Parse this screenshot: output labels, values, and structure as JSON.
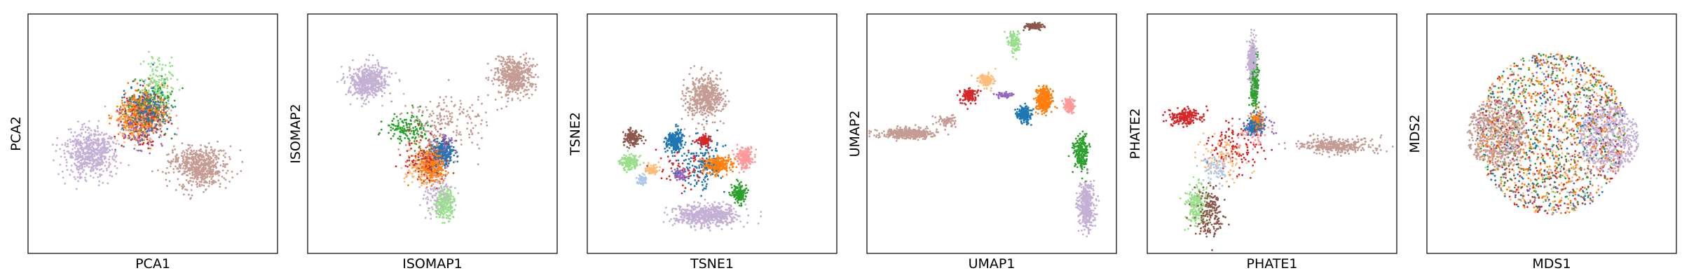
{
  "palette": {
    "tab_blue": "#1f77b4",
    "tab_orange": "#ff7f0e",
    "tab_green": "#2ca02c",
    "light_green": "#98df8a",
    "light_orange": "#ffbb78",
    "tab_red": "#d62728",
    "pink": "#ff9896",
    "tab_purple": "#9467bd",
    "lavender": "#c5b0d5",
    "brown": "#8c564b",
    "rosy_brown": "#c49c94"
  },
  "chart_data": [
    {
      "type": "scatter",
      "xlabel": "PCA1",
      "ylabel": "PCA2",
      "xlim": [
        0,
        100
      ],
      "ylim": [
        0,
        100
      ],
      "ticks": false,
      "grid": false,
      "legend": false,
      "clusters": [
        {
          "color": "lavender",
          "center": [
            25,
            42
          ],
          "spread": [
            9,
            9
          ],
          "count": 600
        },
        {
          "color": "rosy_brown",
          "center": [
            68,
            36
          ],
          "spread": [
            10,
            8
          ],
          "count": 600
        },
        {
          "color": "tab_orange",
          "center": [
            45,
            58
          ],
          "spread": [
            8,
            9
          ],
          "count": 400
        },
        {
          "color": "tab_blue",
          "center": [
            48,
            60
          ],
          "spread": [
            8,
            9
          ],
          "count": 250
        },
        {
          "color": "light_green",
          "center": [
            52,
            70
          ],
          "spread": [
            6,
            9
          ],
          "count": 150
        },
        {
          "color": "tab_green",
          "center": [
            50,
            62
          ],
          "spread": [
            7,
            9
          ],
          "count": 120
        },
        {
          "color": "tab_red",
          "center": [
            46,
            55
          ],
          "spread": [
            8,
            10
          ],
          "count": 120
        },
        {
          "color": "light_orange",
          "center": [
            43,
            56
          ],
          "spread": [
            8,
            9
          ],
          "count": 100
        },
        {
          "color": "tab_purple",
          "center": [
            44,
            52
          ],
          "spread": [
            8,
            9
          ],
          "count": 80
        },
        {
          "color": "brown",
          "center": [
            48,
            58
          ],
          "spread": [
            8,
            9
          ],
          "count": 80
        },
        {
          "color": "pink",
          "center": [
            50,
            57
          ],
          "spread": [
            8,
            9
          ],
          "count": 80
        }
      ]
    },
    {
      "type": "scatter",
      "xlabel": "ISOMAP1",
      "ylabel": "ISOMAP2",
      "xlim": [
        0,
        100
      ],
      "ylim": [
        0,
        100
      ],
      "ticks": false,
      "grid": false,
      "legend": false,
      "clusters": [
        {
          "color": "lavender",
          "center": [
            24,
            72
          ],
          "spread": [
            7,
            6
          ],
          "count": 500
        },
        {
          "color": "rosy_brown",
          "center": [
            83,
            74
          ],
          "spread": [
            7,
            7
          ],
          "count": 500
        },
        {
          "color": "rosy_brown",
          "center": [
            55,
            55
          ],
          "spread": [
            16,
            10
          ],
          "count": 200
        },
        {
          "color": "tab_orange",
          "center": [
            50,
            37
          ],
          "spread": [
            5,
            7
          ],
          "count": 300
        },
        {
          "color": "tab_blue",
          "center": [
            54,
            42
          ],
          "spread": [
            4,
            5
          ],
          "count": 250
        },
        {
          "color": "light_green",
          "center": [
            55,
            20
          ],
          "spread": [
            4,
            6
          ],
          "count": 200
        },
        {
          "color": "lavender",
          "center": [
            52,
            25
          ],
          "spread": [
            5,
            8
          ],
          "count": 120
        },
        {
          "color": "tab_green",
          "center": [
            40,
            52
          ],
          "spread": [
            9,
            6
          ],
          "count": 150
        },
        {
          "color": "tab_red",
          "center": [
            48,
            40
          ],
          "spread": [
            8,
            8
          ],
          "count": 120
        },
        {
          "color": "light_orange",
          "center": [
            45,
            35
          ],
          "spread": [
            6,
            6
          ],
          "count": 100
        },
        {
          "color": "tab_purple",
          "center": [
            55,
            45
          ],
          "spread": [
            5,
            5
          ],
          "count": 60
        },
        {
          "color": "brown",
          "center": [
            50,
            40
          ],
          "spread": [
            6,
            6
          ],
          "count": 60
        },
        {
          "color": "pink",
          "center": [
            52,
            38
          ],
          "spread": [
            5,
            5
          ],
          "count": 60
        }
      ]
    },
    {
      "type": "scatter",
      "xlabel": "TSNE1",
      "ylabel": "TSNE2",
      "xlim": [
        0,
        100
      ],
      "ylim": [
        0,
        100
      ],
      "ticks": false,
      "grid": false,
      "legend": false,
      "clusters": [
        {
          "color": "rosy_brown",
          "center": [
            47,
            65
          ],
          "spread": [
            7,
            8
          ],
          "count": 500
        },
        {
          "color": "lavender",
          "center": [
            47,
            16
          ],
          "spread": [
            12,
            4
          ],
          "count": 600
        },
        {
          "color": "tab_blue",
          "center": [
            35,
            47
          ],
          "spread": [
            3,
            4
          ],
          "count": 250
        },
        {
          "color": "tab_orange",
          "center": [
            52,
            37
          ],
          "spread": [
            5,
            3
          ],
          "count": 300
        },
        {
          "color": "tab_green",
          "center": [
            61,
            25
          ],
          "spread": [
            2.5,
            3.5
          ],
          "count": 180
        },
        {
          "color": "pink",
          "center": [
            63,
            40
          ],
          "spread": [
            3,
            4
          ],
          "count": 180
        },
        {
          "color": "brown",
          "center": [
            18,
            48
          ],
          "spread": [
            3,
            3
          ],
          "count": 150
        },
        {
          "color": "light_green",
          "center": [
            17,
            38
          ],
          "spread": [
            3,
            3
          ],
          "count": 150
        },
        {
          "color": "light_blue_steel",
          "center": [
            22,
            31
          ],
          "spread": [
            2,
            2
          ],
          "count": 60
        },
        {
          "color": "light_orange",
          "center": [
            26,
            35
          ],
          "spread": [
            2,
            2
          ],
          "count": 80
        },
        {
          "color": "tab_red",
          "center": [
            47,
            47
          ],
          "spread": [
            3,
            2
          ],
          "count": 100
        },
        {
          "color": "tab_purple",
          "center": [
            37,
            33
          ],
          "spread": [
            3,
            2
          ],
          "count": 60
        },
        {
          "color": "tab_blue",
          "center": [
            45,
            38
          ],
          "spread": [
            10,
            10
          ],
          "count": 150
        },
        {
          "color": "tab_red",
          "center": [
            40,
            36
          ],
          "spread": [
            10,
            8
          ],
          "count": 60
        }
      ]
    },
    {
      "type": "scatter",
      "xlabel": "UMAP1",
      "ylabel": "UMAP2",
      "xlim": [
        0,
        100
      ],
      "ylim": [
        0,
        100
      ],
      "ticks": false,
      "grid": false,
      "legend": false,
      "clusters": [
        {
          "color": "rosy_brown",
          "center": [
            16,
            50
          ],
          "spread": [
            9,
            2
          ],
          "count": 450
        },
        {
          "color": "rosy_brown",
          "center": [
            32,
            55
          ],
          "spread": [
            4,
            2
          ],
          "count": 60
        },
        {
          "color": "tab_red",
          "center": [
            41,
            66
          ],
          "spread": [
            3,
            3
          ],
          "count": 120
        },
        {
          "color": "light_orange",
          "center": [
            48,
            72
          ],
          "spread": [
            3,
            3
          ],
          "count": 120
        },
        {
          "color": "light_green",
          "center": [
            59,
            88
          ],
          "spread": [
            2,
            4
          ],
          "count": 120
        },
        {
          "color": "brown",
          "center": [
            67,
            95
          ],
          "spread": [
            3,
            1.2
          ],
          "count": 120
        },
        {
          "color": "tab_orange",
          "center": [
            71,
            64
          ],
          "spread": [
            3,
            4
          ],
          "count": 350
        },
        {
          "color": "tab_blue",
          "center": [
            63,
            58
          ],
          "spread": [
            2.5,
            3
          ],
          "count": 200
        },
        {
          "color": "pink",
          "center": [
            81,
            62
          ],
          "spread": [
            2,
            3
          ],
          "count": 120
        },
        {
          "color": "tab_purple",
          "center": [
            55,
            66
          ],
          "spread": [
            3,
            1
          ],
          "count": 60
        },
        {
          "color": "tab_green",
          "center": [
            86,
            42
          ],
          "spread": [
            2.5,
            7
          ],
          "count": 220
        },
        {
          "color": "lavender",
          "center": [
            88,
            20
          ],
          "spread": [
            3,
            9
          ],
          "count": 400
        }
      ]
    },
    {
      "type": "scatter",
      "xlabel": "PHATE1",
      "ylabel": "PHATE2",
      "xlim": [
        0,
        100
      ],
      "ylim": [
        0,
        100
      ],
      "ticks": false,
      "grid": false,
      "legend": false,
      "clusters": [
        {
          "color": "lavender",
          "center": [
            42,
            80
          ],
          "spread": [
            1.5,
            8
          ],
          "count": 350
        },
        {
          "color": "tab_green",
          "center": [
            43,
            70
          ],
          "spread": [
            1.5,
            9
          ],
          "count": 200
        },
        {
          "color": "tab_blue",
          "center": [
            43,
            53
          ],
          "spread": [
            3,
            3
          ],
          "count": 220
        },
        {
          "color": "tab_orange",
          "center": [
            44,
            55
          ],
          "spread": [
            2,
            3
          ],
          "count": 120
        },
        {
          "color": "rosy_brown",
          "center": [
            75,
            45
          ],
          "spread": [
            14,
            3
          ],
          "count": 350
        },
        {
          "color": "tab_red",
          "center": [
            15,
            57
          ],
          "spread": [
            6,
            3
          ],
          "count": 200
        },
        {
          "color": "tab_red",
          "center": [
            35,
            45
          ],
          "spread": [
            10,
            10
          ],
          "count": 120
        },
        {
          "color": "brown",
          "center": [
            25,
            18
          ],
          "spread": [
            5,
            10
          ],
          "count": 200
        },
        {
          "color": "light_green",
          "center": [
            20,
            20
          ],
          "spread": [
            4,
            8
          ],
          "count": 200
        },
        {
          "color": "light_orange",
          "center": [
            30,
            40
          ],
          "spread": [
            8,
            8
          ],
          "count": 100
        },
        {
          "color": "light_blue_steel",
          "center": [
            28,
            35
          ],
          "spread": [
            5,
            6
          ],
          "count": 80
        },
        {
          "color": "tab_purple",
          "center": [
            45,
            55
          ],
          "spread": [
            6,
            5
          ],
          "count": 50
        },
        {
          "color": "pink",
          "center": [
            42,
            50
          ],
          "spread": [
            6,
            5
          ],
          "count": 50
        }
      ]
    },
    {
      "type": "scatter",
      "xlabel": "MDS1",
      "ylabel": "MDS2",
      "xlim": [
        0,
        100
      ],
      "ylim": [
        0,
        100
      ],
      "ticks": false,
      "grid": false,
      "legend": false,
      "clusters": [
        {
          "color": "rosy_brown",
          "center": [
            28,
            50
          ],
          "spread": [
            12,
            14
          ],
          "count": 600,
          "disk": true
        },
        {
          "color": "lavender",
          "center": [
            73,
            48
          ],
          "spread": [
            12,
            14
          ],
          "count": 600,
          "disk": true
        },
        {
          "color": "tab_orange",
          "center": [
            50,
            50
          ],
          "spread": [
            30,
            34
          ],
          "count": 500,
          "disk": true
        },
        {
          "color": "tab_blue",
          "center": [
            50,
            50
          ],
          "spread": [
            30,
            34
          ],
          "count": 300,
          "disk": true
        },
        {
          "color": "tab_green",
          "center": [
            50,
            50
          ],
          "spread": [
            30,
            34
          ],
          "count": 200,
          "disk": true
        },
        {
          "color": "tab_red",
          "center": [
            50,
            50
          ],
          "spread": [
            30,
            34
          ],
          "count": 250,
          "disk": true
        },
        {
          "color": "light_green",
          "center": [
            50,
            50
          ],
          "spread": [
            30,
            34
          ],
          "count": 150,
          "disk": true
        },
        {
          "color": "light_orange",
          "center": [
            50,
            50
          ],
          "spread": [
            30,
            34
          ],
          "count": 150,
          "disk": true
        },
        {
          "color": "tab_purple",
          "center": [
            50,
            50
          ],
          "spread": [
            30,
            34
          ],
          "count": 120,
          "disk": true
        },
        {
          "color": "brown",
          "center": [
            50,
            50
          ],
          "spread": [
            30,
            34
          ],
          "count": 120,
          "disk": true
        },
        {
          "color": "pink",
          "center": [
            50,
            50
          ],
          "spread": [
            30,
            34
          ],
          "count": 120,
          "disk": true
        }
      ]
    }
  ]
}
